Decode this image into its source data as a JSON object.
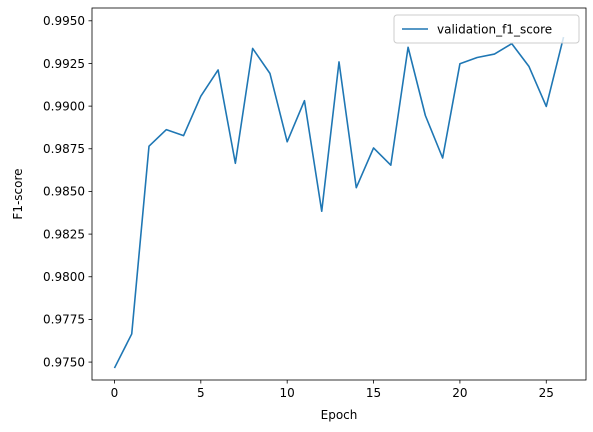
{
  "chart_data": {
    "type": "line",
    "title": "",
    "xlabel": "Epoch",
    "ylabel": "F1-score",
    "xlim": [
      -1.3,
      27.3
    ],
    "ylim": [
      0.97395,
      0.99575
    ],
    "xticks": [
      0,
      5,
      10,
      15,
      20,
      25
    ],
    "xtick_labels": [
      "0",
      "5",
      "10",
      "15",
      "20",
      "25"
    ],
    "yticks": [
      0.975,
      0.9775,
      0.98,
      0.9825,
      0.985,
      0.9875,
      0.99,
      0.9925,
      0.995
    ],
    "ytick_labels": [
      "0.9750",
      "0.9775",
      "0.9800",
      "0.9825",
      "0.9850",
      "0.9875",
      "0.9900",
      "0.9925",
      "0.9950"
    ],
    "grid": false,
    "legend_position": "top-right",
    "series": [
      {
        "name": "validation_f1_score",
        "color": "#1f77b4",
        "x": [
          0,
          1,
          2,
          3,
          4,
          5,
          6,
          7,
          8,
          9,
          10,
          11,
          12,
          13,
          14,
          15,
          16,
          17,
          18,
          19,
          20,
          21,
          22,
          23,
          24,
          25,
          26
        ],
        "y": [
          0.97465,
          0.97665,
          0.98765,
          0.98862,
          0.98827,
          0.99058,
          0.99212,
          0.98665,
          0.99338,
          0.99192,
          0.98791,
          0.99032,
          0.98384,
          0.99259,
          0.98522,
          0.98755,
          0.98654,
          0.99345,
          0.98945,
          0.98696,
          0.99248,
          0.99285,
          0.99305,
          0.99366,
          0.99232,
          0.98998,
          0.99405
        ]
      }
    ]
  }
}
